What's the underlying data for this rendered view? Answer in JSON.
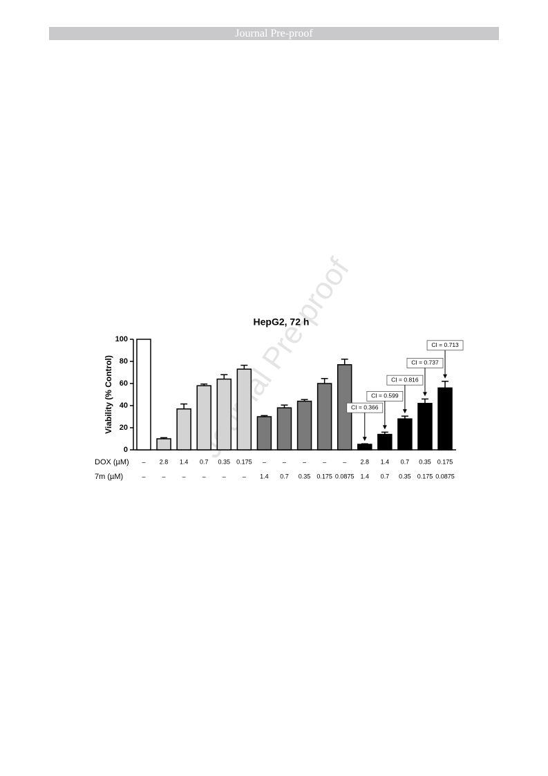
{
  "header": {
    "title": "Journal Pre-proof"
  },
  "watermark": "Journal Pre-proof",
  "chart_data": {
    "type": "bar",
    "title": "HepG2, 72 h",
    "y_label": "Viability (% Control)",
    "rows": [
      {
        "label": "DOX (µM)",
        "values": [
          "–",
          "2.8",
          "1.4",
          "0.7",
          "0.35",
          "0.175",
          "–",
          "–",
          "–",
          "–",
          "–",
          "2.8",
          "1.4",
          "0.7",
          "0.35",
          "0.175"
        ]
      },
      {
        "label": "7m (µM)",
        "values": [
          "–",
          "–",
          "–",
          "–",
          "–",
          "–",
          "1.4",
          "0.7",
          "0.35",
          "0.175",
          "0.0875",
          "1.4",
          "0.7",
          "0.35",
          "0.175",
          "0.0875"
        ]
      }
    ],
    "values": [
      100,
      10,
      37,
      58,
      64,
      73,
      30,
      38,
      44,
      60,
      77,
      5,
      14,
      28,
      42,
      56
    ],
    "errors": [
      0,
      1,
      4.5,
      1.5,
      4,
      3.5,
      1,
      2.5,
      1.5,
      4.5,
      5,
      0.5,
      2,
      2.5,
      4,
      6
    ],
    "colors": [
      "#ffffff",
      "#d3d3d3",
      "#d3d3d3",
      "#d3d3d3",
      "#d3d3d3",
      "#d3d3d3",
      "#7a7a7a",
      "#7a7a7a",
      "#7a7a7a",
      "#7a7a7a",
      "#7a7a7a",
      "#000000",
      "#000000",
      "#000000",
      "#000000",
      "#000000"
    ],
    "annotations": [
      null,
      null,
      null,
      null,
      null,
      null,
      null,
      null,
      null,
      null,
      null,
      "CI = 0.366",
      "CI = 0.599",
      "CI = 0.816",
      "CI = 0.737",
      "CI = 0.713"
    ],
    "ylim": [
      0,
      100
    ],
    "yticks": [
      0,
      20,
      40,
      60,
      80,
      100
    ]
  }
}
